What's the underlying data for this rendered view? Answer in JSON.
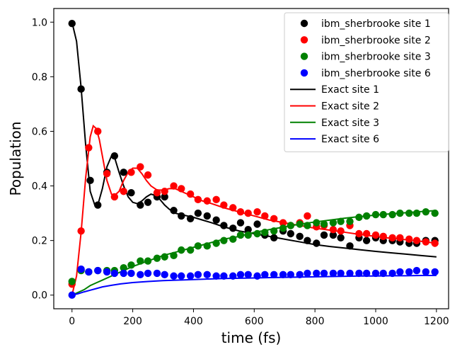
{
  "chart_data": {
    "type": "scatter",
    "xlabel": "time (fs)",
    "ylabel": "Population",
    "xlim": [
      -60,
      1240
    ],
    "ylim": [
      -0.05,
      1.05
    ],
    "xticks": [
      0,
      200,
      400,
      600,
      800,
      1000,
      1200
    ],
    "yticks": [
      0.0,
      0.2,
      0.4,
      0.6,
      0.8,
      1.0
    ],
    "xtick_labels": [
      "0",
      "200",
      "400",
      "600",
      "800",
      "1000",
      "1200"
    ],
    "ytick_labels": [
      "0.0",
      "0.2",
      "0.4",
      "0.6",
      "0.8",
      "1.0"
    ],
    "grid": false,
    "legend_position": "top-right",
    "scatter_series": [
      {
        "name": "ibm_sherbrooke site 1",
        "color": "#000000",
        "x": [
          0,
          30,
          60,
          85,
          115,
          140,
          170,
          195,
          225,
          250,
          280,
          305,
          335,
          360,
          390,
          415,
          445,
          475,
          500,
          530,
          555,
          580,
          610,
          635,
          665,
          695,
          720,
          750,
          775,
          805,
          830,
          860,
          885,
          915,
          945,
          970,
          1000,
          1025,
          1055,
          1080,
          1110,
          1135,
          1165,
          1195
        ],
        "y": [
          0.995,
          0.755,
          0.42,
          0.33,
          0.45,
          0.51,
          0.45,
          0.375,
          0.33,
          0.34,
          0.36,
          0.36,
          0.31,
          0.29,
          0.28,
          0.3,
          0.29,
          0.275,
          0.255,
          0.245,
          0.265,
          0.24,
          0.26,
          0.22,
          0.21,
          0.235,
          0.225,
          0.215,
          0.2,
          0.19,
          0.22,
          0.22,
          0.21,
          0.18,
          0.21,
          0.2,
          0.21,
          0.2,
          0.2,
          0.195,
          0.19,
          0.19,
          0.2,
          0.2
        ]
      },
      {
        "name": "ibm_sherbrooke site 2",
        "color": "#ff0000",
        "x": [
          0,
          30,
          55,
          85,
          115,
          140,
          170,
          195,
          225,
          250,
          280,
          305,
          335,
          360,
          390,
          415,
          445,
          475,
          500,
          530,
          555,
          580,
          610,
          635,
          665,
          695,
          720,
          750,
          775,
          805,
          830,
          860,
          885,
          915,
          945,
          970,
          1000,
          1025,
          1055,
          1080,
          1110,
          1135,
          1165,
          1195
        ],
        "y": [
          0.04,
          0.235,
          0.54,
          0.6,
          0.445,
          0.36,
          0.38,
          0.45,
          0.47,
          0.44,
          0.375,
          0.38,
          0.4,
          0.39,
          0.37,
          0.35,
          0.345,
          0.35,
          0.33,
          0.32,
          0.305,
          0.3,
          0.305,
          0.29,
          0.28,
          0.265,
          0.255,
          0.265,
          0.29,
          0.25,
          0.255,
          0.24,
          0.235,
          0.255,
          0.225,
          0.225,
          0.22,
          0.215,
          0.21,
          0.21,
          0.205,
          0.2,
          0.195,
          0.19
        ]
      },
      {
        "name": "ibm_sherbrooke site 3",
        "color": "#008000",
        "x": [
          0,
          30,
          55,
          85,
          115,
          140,
          170,
          195,
          225,
          250,
          280,
          305,
          335,
          360,
          390,
          415,
          445,
          475,
          500,
          530,
          555,
          580,
          610,
          635,
          665,
          695,
          720,
          750,
          775,
          805,
          830,
          860,
          885,
          915,
          945,
          970,
          1000,
          1025,
          1055,
          1080,
          1110,
          1135,
          1165,
          1195
        ],
        "y": [
          0.05,
          0.09,
          0.085,
          0.09,
          0.09,
          0.09,
          0.1,
          0.11,
          0.125,
          0.125,
          0.135,
          0.14,
          0.145,
          0.165,
          0.165,
          0.18,
          0.18,
          0.19,
          0.2,
          0.205,
          0.22,
          0.22,
          0.225,
          0.23,
          0.235,
          0.245,
          0.255,
          0.26,
          0.255,
          0.265,
          0.26,
          0.265,
          0.27,
          0.27,
          0.285,
          0.29,
          0.295,
          0.295,
          0.295,
          0.3,
          0.3,
          0.3,
          0.305,
          0.3
        ]
      },
      {
        "name": "ibm_sherbrooke site 6",
        "color": "#0000ff",
        "x": [
          0,
          30,
          55,
          85,
          115,
          140,
          170,
          195,
          225,
          250,
          280,
          305,
          335,
          360,
          390,
          415,
          445,
          475,
          500,
          530,
          555,
          580,
          610,
          635,
          665,
          695,
          720,
          750,
          775,
          805,
          830,
          860,
          885,
          915,
          945,
          970,
          1000,
          1025,
          1055,
          1080,
          1110,
          1135,
          1165,
          1195
        ],
        "y": [
          0.0,
          0.095,
          0.085,
          0.09,
          0.085,
          0.08,
          0.08,
          0.08,
          0.075,
          0.08,
          0.08,
          0.075,
          0.07,
          0.07,
          0.07,
          0.075,
          0.075,
          0.07,
          0.07,
          0.07,
          0.075,
          0.075,
          0.07,
          0.075,
          0.075,
          0.075,
          0.075,
          0.075,
          0.08,
          0.08,
          0.08,
          0.08,
          0.08,
          0.08,
          0.08,
          0.08,
          0.08,
          0.08,
          0.08,
          0.085,
          0.085,
          0.09,
          0.085,
          0.085
        ]
      }
    ],
    "line_series": [
      {
        "name": "Exact site 1",
        "color": "#000000",
        "x": [
          0,
          15,
          30,
          45,
          60,
          75,
          85,
          100,
          115,
          130,
          140,
          155,
          170,
          185,
          200,
          215,
          230,
          245,
          260,
          275,
          290,
          305,
          320,
          340,
          360,
          380,
          400,
          430,
          460,
          500,
          550,
          600,
          650,
          700,
          750,
          800,
          850,
          900,
          950,
          1000,
          1050,
          1100,
          1150,
          1200
        ],
        "y": [
          1.0,
          0.93,
          0.76,
          0.55,
          0.38,
          0.33,
          0.33,
          0.39,
          0.47,
          0.51,
          0.505,
          0.45,
          0.4,
          0.36,
          0.34,
          0.335,
          0.345,
          0.36,
          0.37,
          0.365,
          0.35,
          0.33,
          0.315,
          0.3,
          0.295,
          0.29,
          0.285,
          0.275,
          0.265,
          0.25,
          0.235,
          0.225,
          0.215,
          0.205,
          0.195,
          0.185,
          0.178,
          0.172,
          0.166,
          0.16,
          0.155,
          0.15,
          0.145,
          0.14
        ]
      },
      {
        "name": "Exact site 2",
        "color": "#ff0000",
        "x": [
          0,
          15,
          30,
          45,
          60,
          70,
          80,
          90,
          100,
          115,
          130,
          140,
          155,
          170,
          185,
          200,
          215,
          230,
          245,
          260,
          280,
          300,
          320,
          340,
          360,
          380,
          400,
          430,
          460,
          500,
          550,
          600,
          650,
          700,
          750,
          800,
          850,
          900,
          950,
          1000,
          1050,
          1100,
          1150,
          1200
        ],
        "y": [
          0.0,
          0.07,
          0.23,
          0.43,
          0.58,
          0.62,
          0.61,
          0.57,
          0.51,
          0.42,
          0.37,
          0.365,
          0.38,
          0.42,
          0.45,
          0.465,
          0.465,
          0.445,
          0.42,
          0.4,
          0.385,
          0.385,
          0.39,
          0.39,
          0.38,
          0.37,
          0.36,
          0.345,
          0.335,
          0.32,
          0.305,
          0.29,
          0.275,
          0.265,
          0.255,
          0.245,
          0.238,
          0.23,
          0.222,
          0.215,
          0.208,
          0.203,
          0.197,
          0.19
        ]
      },
      {
        "name": "Exact site 3",
        "color": "#008000",
        "x": [
          0,
          20,
          40,
          60,
          80,
          100,
          130,
          160,
          200,
          250,
          300,
          350,
          400,
          450,
          500,
          550,
          600,
          650,
          700,
          750,
          800,
          850,
          900,
          950,
          1000,
          1050,
          1100,
          1150,
          1200
        ],
        "y": [
          0.0,
          0.01,
          0.02,
          0.035,
          0.045,
          0.055,
          0.07,
          0.085,
          0.105,
          0.125,
          0.145,
          0.16,
          0.175,
          0.19,
          0.205,
          0.215,
          0.23,
          0.24,
          0.25,
          0.26,
          0.268,
          0.275,
          0.282,
          0.288,
          0.293,
          0.298,
          0.302,
          0.306,
          0.31
        ]
      },
      {
        "name": "Exact site 6",
        "color": "#0000ff",
        "x": [
          0,
          20,
          40,
          60,
          80,
          100,
          130,
          160,
          200,
          250,
          300,
          350,
          400,
          450,
          500,
          550,
          600,
          650,
          700,
          750,
          800,
          850,
          900,
          950,
          1000,
          1050,
          1100,
          1150,
          1200
        ],
        "y": [
          0.0,
          0.005,
          0.012,
          0.018,
          0.024,
          0.03,
          0.036,
          0.041,
          0.046,
          0.05,
          0.053,
          0.055,
          0.057,
          0.059,
          0.061,
          0.062,
          0.063,
          0.064,
          0.065,
          0.066,
          0.067,
          0.068,
          0.069,
          0.07,
          0.07,
          0.071,
          0.071,
          0.072,
          0.072
        ]
      }
    ]
  }
}
